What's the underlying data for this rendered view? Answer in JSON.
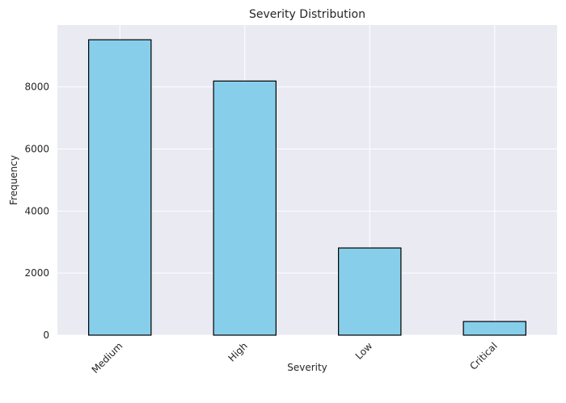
{
  "chart_data": {
    "type": "bar",
    "title": "Severity Distribution",
    "xlabel": "Severity",
    "ylabel": "Frequency",
    "categories": [
      "Medium",
      "High",
      "Low",
      "Critical"
    ],
    "values": [
      9520,
      8190,
      2810,
      440
    ],
    "ylim": [
      0,
      9995
    ],
    "yticks": [
      0,
      2000,
      4000,
      6000,
      8000
    ],
    "grid": true,
    "legend": "none",
    "x_tick_rotation_deg": 45,
    "colors": {
      "bar_fill": "#87ceeb",
      "bar_edge": "#000000",
      "plot_background": "#eaeaf2",
      "grid": "#ffffff",
      "text": "#262626"
    }
  }
}
